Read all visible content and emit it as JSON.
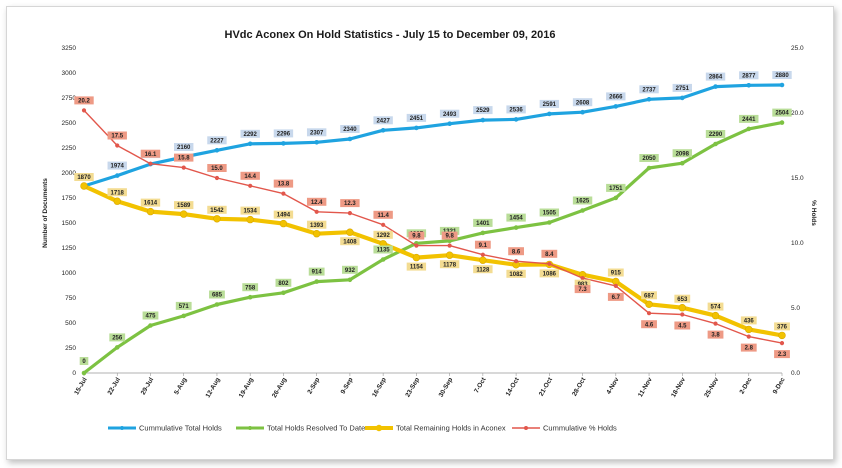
{
  "chart_data": {
    "type": "line",
    "title": "HVdc Aconex On Hold Statistics - July 15 to December  09, 2016",
    "ylabel": "Number of Documents",
    "y2label": "% Holds",
    "ylim": [
      0,
      3250
    ],
    "y2lim": [
      0,
      25
    ],
    "yticks": [
      "0",
      "250",
      "500",
      "750",
      "1000",
      "1250",
      "1500",
      "1750",
      "2000",
      "2250",
      "2500",
      "2750",
      "3000",
      "3250"
    ],
    "y2ticks": [
      "0.0",
      "5.0",
      "10.0",
      "15.0",
      "20.0",
      "25.0"
    ],
    "grid": false,
    "legend_position": "bottom",
    "categories": [
      "15-Jul",
      "22-Jul",
      "29-Jul",
      "5-Aug",
      "12-Aug",
      "19-Aug",
      "26-Aug",
      "2-Sep",
      "9-Sep",
      "16-Sep",
      "23-Sep",
      "30-Sep",
      "7-Oct",
      "14-Oct",
      "21-Oct",
      "28-Oct",
      "4-Nov",
      "11-Nov",
      "18-Nov",
      "25-Nov",
      "2-Dec",
      "9-Dec"
    ],
    "series": [
      {
        "name": "Cummulative Total Holds",
        "axis": "left",
        "color": "#1fa3e0",
        "label_bg": "#c8d8ec",
        "label_pos": "above",
        "values": [
          1870,
          1974,
          2089,
          2160,
          2227,
          2292,
          2296,
          2307,
          2340,
          2427,
          2451,
          2493,
          2529,
          2536,
          2591,
          2608,
          2666,
          2737,
          2751,
          2864,
          2877,
          2880
        ],
        "labels": [
          "",
          "1974",
          "2089",
          "2160",
          "2227",
          "2292",
          "2296",
          "2307",
          "2340",
          "2427",
          "2451",
          "2493",
          "2529",
          "2536",
          "2591",
          "2608",
          "2666",
          "2737",
          "2751",
          "2864",
          "2877",
          "2880"
        ]
      },
      {
        "name": "Total Holds Resolved To Date",
        "axis": "left",
        "color": "#7dc242",
        "label_bg": "#b9dd98",
        "label_pos": "above",
        "values": [
          0,
          256,
          475,
          571,
          685,
          758,
          802,
          914,
          932,
          1135,
          1297,
          1321,
          1401,
          1454,
          1505,
          1625,
          1751,
          2050,
          2098,
          2290,
          2441,
          2504
        ],
        "labels": [
          "0",
          "256",
          "475",
          "571",
          "685",
          "758",
          "802",
          "914",
          "932",
          "1135",
          "1297",
          "1321",
          "1401",
          "1454",
          "1505",
          "1625",
          "1751",
          "2050",
          "2098",
          "2290",
          "2441",
          "2504"
        ]
      },
      {
        "name": "Total Remaining Holds in Aconex",
        "axis": "left",
        "color": "#f2c200",
        "label_bg": "#f3dc92",
        "label_pos": "mixed",
        "values": [
          1870,
          1718,
          1614,
          1589,
          1542,
          1534,
          1494,
          1393,
          1408,
          1292,
          1154,
          1178,
          1128,
          1082,
          1086,
          983,
          915,
          687,
          653,
          574,
          436,
          376
        ],
        "labels": [
          "1870",
          "1718",
          "1614",
          "1589",
          "1542",
          "1534",
          "1494",
          "1393",
          "1408",
          "1292",
          "1154",
          "1178",
          "1128",
          "1082",
          "1086",
          "983",
          "915",
          "687",
          "653",
          "574",
          "436",
          "376"
        ]
      },
      {
        "name": "Cummulative % Holds",
        "axis": "right",
        "color": "#e2574c",
        "label_bg": "#ee9a85",
        "label_pos": "mixed",
        "values": [
          20.2,
          17.5,
          16.1,
          15.8,
          15.0,
          14.4,
          13.8,
          12.4,
          12.3,
          11.4,
          9.8,
          9.8,
          9.1,
          8.6,
          8.4,
          7.3,
          6.7,
          4.6,
          4.5,
          3.8,
          2.8,
          2.3
        ],
        "labels": [
          "20.2",
          "17.5",
          "16.1",
          "15.8",
          "15.0",
          "14.4",
          "13.8",
          "12.4",
          "12.3",
          "11.4",
          "9.8",
          "9.8",
          "9.1",
          "8.6",
          "8.4",
          "7.3",
          "6.7",
          "4.6",
          "4.5",
          "3.8",
          "2.8",
          "2.3"
        ]
      }
    ]
  }
}
